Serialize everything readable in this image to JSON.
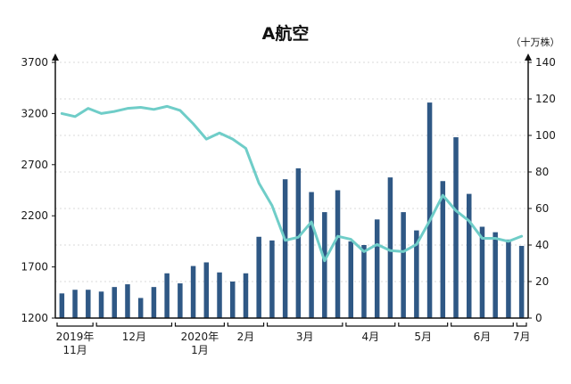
{
  "chart_data": {
    "type": "bar",
    "title": "A航空",
    "y2_unit": "（十万株）",
    "left_axis": {
      "ticks": [
        1200,
        1700,
        2200,
        2700,
        3200,
        3700
      ],
      "ylim": [
        1200,
        3700
      ]
    },
    "right_axis": {
      "ticks": [
        0,
        20,
        40,
        60,
        80,
        100,
        120,
        140
      ],
      "ylim": [
        0,
        140
      ]
    },
    "month_labels": [
      {
        "text": "2019年",
        "text2": "11月"
      },
      {
        "text": "12月"
      },
      {
        "text": "2020年",
        "text2": "1月"
      },
      {
        "text": "2月"
      },
      {
        "text": "3月"
      },
      {
        "text": "4月"
      },
      {
        "text": "5月"
      },
      {
        "text": "6月"
      },
      {
        "text": "7月"
      }
    ],
    "grid": true,
    "colors": {
      "bar": "#2f5885",
      "line": "#6fcdc8",
      "axis": "#111111",
      "grid": "#d8d8d8"
    },
    "series": [
      {
        "chart": "bar",
        "axis": "right",
        "values": [
          13.5,
          15.5,
          15.5,
          14.5,
          17,
          18.5,
          11,
          17,
          24.5,
          19,
          28.5,
          30.5,
          25,
          20,
          24.5,
          44.5,
          42.5,
          76,
          82,
          69,
          58,
          70,
          42,
          40,
          54,
          77,
          58,
          48,
          118,
          75,
          99,
          68,
          50,
          47,
          43,
          39.5
        ]
      },
      {
        "chart": "line",
        "axis": "left",
        "values": [
          3200,
          3170,
          3250,
          3200,
          3220,
          3250,
          3260,
          3240,
          3270,
          3230,
          3100,
          2950,
          3010,
          2950,
          2860,
          2520,
          2300,
          1960,
          1990,
          2140,
          1760,
          2000,
          1970,
          1850,
          1920,
          1860,
          1850,
          1920,
          2150,
          2400,
          2250,
          2150,
          1980,
          1980,
          1950,
          2000
        ]
      }
    ]
  }
}
